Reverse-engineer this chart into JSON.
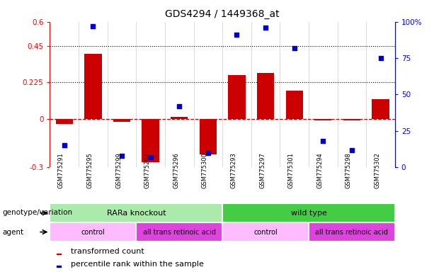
{
  "title": "GDS4294 / 1449368_at",
  "samples": [
    "GSM775291",
    "GSM775295",
    "GSM775299",
    "GSM775292",
    "GSM775296",
    "GSM775300",
    "GSM775293",
    "GSM775297",
    "GSM775301",
    "GSM775294",
    "GSM775298",
    "GSM775302"
  ],
  "bar_values": [
    -0.03,
    0.4,
    -0.02,
    -0.27,
    0.01,
    -0.22,
    0.27,
    0.285,
    0.175,
    -0.01,
    -0.01,
    0.12
  ],
  "dot_values": [
    15,
    97,
    8,
    7,
    42,
    10,
    91,
    96,
    82,
    18,
    12,
    75
  ],
  "ylim_left": [
    -0.3,
    0.6
  ],
  "ylim_right": [
    0,
    100
  ],
  "yticks_left": [
    -0.3,
    0,
    0.225,
    0.45,
    0.6
  ],
  "yticks_right": [
    0,
    25,
    50,
    75,
    100
  ],
  "hlines": [
    0.225,
    0.45
  ],
  "bar_color": "#cc0000",
  "dot_color": "#0000cc",
  "zero_line_color": "#cc0000",
  "groups": [
    {
      "label": "RARa knockout",
      "start": 0,
      "end": 6,
      "color": "#aaeaaa"
    },
    {
      "label": "wild type",
      "start": 6,
      "end": 12,
      "color": "#44cc44"
    }
  ],
  "agents": [
    {
      "label": "control",
      "start": 0,
      "end": 3,
      "color": "#ffbbff"
    },
    {
      "label": "all trans retinoic acid",
      "start": 3,
      "end": 6,
      "color": "#dd44dd"
    },
    {
      "label": "control",
      "start": 6,
      "end": 9,
      "color": "#ffbbff"
    },
    {
      "label": "all trans retinoic acid",
      "start": 9,
      "end": 12,
      "color": "#dd44dd"
    }
  ],
  "genotype_label": "genotype/variation",
  "agent_label": "agent",
  "legend_bar_label": "transformed count",
  "legend_dot_label": "percentile rank within the sample",
  "bg_color": "#ffffff",
  "tick_area_color": "#cccccc",
  "grid_line_color": "#cccccc",
  "bar_width": 0.6
}
